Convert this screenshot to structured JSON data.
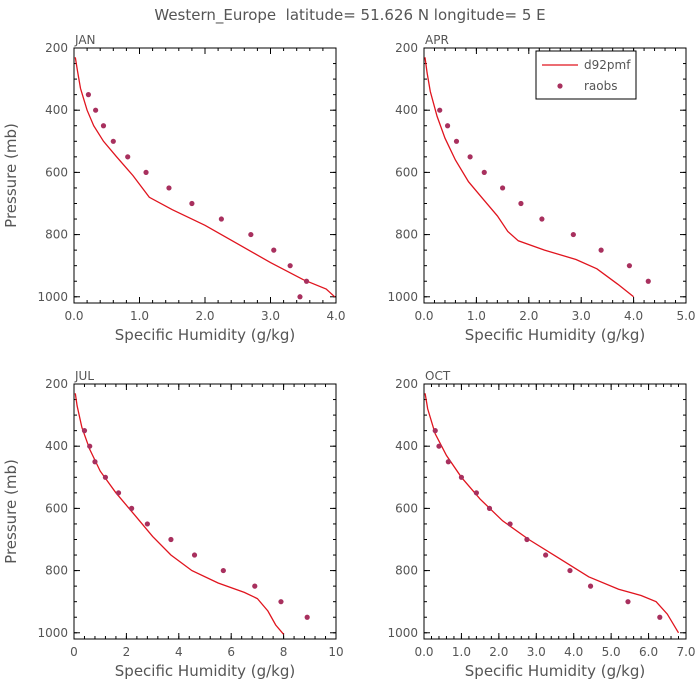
{
  "title": "Western_Europe  latitude= 51.626 N longitude= 5 E",
  "colors": {
    "line": "#e0141e",
    "points": "#a8305e",
    "axis": "#000000",
    "text": "#555555"
  },
  "chart_data": [
    {
      "type": "line",
      "panel": "JAN",
      "xlabel": "Specific Humidity (g/kg)",
      "ylabel": "Pressure (mb)",
      "xlim": [
        0,
        4
      ],
      "ylim": [
        1020,
        200
      ],
      "xticks": [
        0,
        1,
        2,
        3,
        4
      ],
      "xtick_labels": [
        "0.0",
        "1.0",
        "2.0",
        "3.0",
        "4.0"
      ],
      "yticks": [
        200,
        400,
        600,
        800,
        1000
      ],
      "legend": false,
      "series": [
        {
          "kind": "line",
          "x": [
            0.02,
            0.05,
            0.1,
            0.2,
            0.3,
            0.45,
            0.65,
            0.9,
            1.15,
            1.5,
            2.0,
            2.5,
            3.0,
            3.5,
            3.85,
            3.98
          ],
          "y": [
            230,
            270,
            330,
            400,
            450,
            500,
            550,
            610,
            680,
            720,
            770,
            830,
            890,
            945,
            975,
            1000
          ]
        },
        {
          "kind": "points",
          "x": [
            0.22,
            0.33,
            0.45,
            0.6,
            0.82,
            1.1,
            1.45,
            1.8,
            2.25,
            2.7,
            3.05,
            3.3,
            3.55,
            3.45
          ],
          "y": [
            350,
            400,
            450,
            500,
            550,
            600,
            650,
            700,
            750,
            800,
            850,
            900,
            950,
            1000
          ]
        }
      ]
    },
    {
      "type": "line",
      "panel": "APR",
      "xlabel": "Specific Humidity (g/kg)",
      "ylabel": "",
      "xlim": [
        0,
        5
      ],
      "ylim": [
        1020,
        200
      ],
      "xticks": [
        0,
        1,
        2,
        3,
        4,
        5
      ],
      "xtick_labels": [
        "0.0",
        "1.0",
        "2.0",
        "3.0",
        "4.0",
        "5.0"
      ],
      "yticks": [
        200,
        400,
        600,
        800,
        1000
      ],
      "legend": true,
      "legend_entries": [
        "d92pmf",
        "raobs"
      ],
      "series": [
        {
          "name": "d92pmf",
          "kind": "line",
          "x": [
            0.02,
            0.06,
            0.12,
            0.25,
            0.4,
            0.6,
            0.85,
            1.1,
            1.4,
            1.6,
            1.8,
            2.3,
            2.9,
            3.3,
            3.7,
            4.0
          ],
          "y": [
            230,
            280,
            340,
            420,
            490,
            560,
            630,
            680,
            740,
            790,
            820,
            850,
            880,
            910,
            960,
            1000
          ]
        },
        {
          "name": "raobs",
          "kind": "points",
          "x": [
            0.3,
            0.45,
            0.62,
            0.88,
            1.15,
            1.5,
            1.85,
            2.25,
            2.85,
            3.38,
            3.92,
            4.28
          ],
          "y": [
            400,
            450,
            500,
            550,
            600,
            650,
            700,
            750,
            800,
            850,
            900,
            950
          ]
        }
      ]
    },
    {
      "type": "line",
      "panel": "JUL",
      "xlabel": "Specific Humidity (g/kg)",
      "ylabel": "Pressure (mb)",
      "xlim": [
        0,
        10
      ],
      "ylim": [
        1020,
        200
      ],
      "xticks": [
        0,
        2,
        4,
        6,
        8,
        10
      ],
      "xtick_labels": [
        "0",
        "2",
        "4",
        "6",
        "8",
        "10"
      ],
      "yticks": [
        200,
        400,
        600,
        800,
        1000
      ],
      "legend": false,
      "series": [
        {
          "kind": "line",
          "x": [
            0.05,
            0.12,
            0.3,
            0.6,
            1.0,
            1.6,
            2.3,
            3.0,
            3.7,
            4.5,
            5.5,
            6.5,
            7.0,
            7.4,
            7.7,
            8.0
          ],
          "y": [
            230,
            270,
            340,
            410,
            480,
            550,
            620,
            690,
            750,
            800,
            840,
            870,
            890,
            930,
            975,
            1005
          ]
        },
        {
          "kind": "points",
          "x": [
            0.4,
            0.6,
            0.8,
            1.2,
            1.7,
            2.2,
            2.8,
            3.7,
            4.6,
            5.7,
            6.9,
            7.9,
            8.9
          ],
          "y": [
            350,
            400,
            450,
            500,
            550,
            600,
            650,
            700,
            750,
            800,
            850,
            900,
            950
          ]
        }
      ]
    },
    {
      "type": "line",
      "panel": "OCT",
      "xlabel": "Specific Humidity (g/kg)",
      "ylabel": "",
      "xlim": [
        0,
        7
      ],
      "ylim": [
        1020,
        200
      ],
      "xticks": [
        0,
        1,
        2,
        3,
        4,
        5,
        6,
        7
      ],
      "xtick_labels": [
        "0.0",
        "1.0",
        "2.0",
        "3.0",
        "4.0",
        "5.0",
        "6.0",
        "7.0"
      ],
      "yticks": [
        200,
        400,
        600,
        800,
        1000
      ],
      "legend": false,
      "series": [
        {
          "kind": "line",
          "x": [
            0.03,
            0.1,
            0.3,
            0.6,
            1.0,
            1.5,
            2.1,
            2.8,
            3.6,
            4.4,
            5.2,
            5.8,
            6.2,
            6.5,
            6.8
          ],
          "y": [
            230,
            280,
            360,
            430,
            500,
            570,
            640,
            700,
            760,
            820,
            860,
            880,
            900,
            940,
            1000
          ]
        },
        {
          "kind": "points",
          "x": [
            0.3,
            0.4,
            0.65,
            1.0,
            1.4,
            1.75,
            2.3,
            2.75,
            3.25,
            3.9,
            4.45,
            5.45,
            6.3
          ],
          "y": [
            350,
            400,
            450,
            500,
            550,
            600,
            650,
            700,
            750,
            800,
            850,
            900,
            950
          ]
        }
      ]
    }
  ]
}
